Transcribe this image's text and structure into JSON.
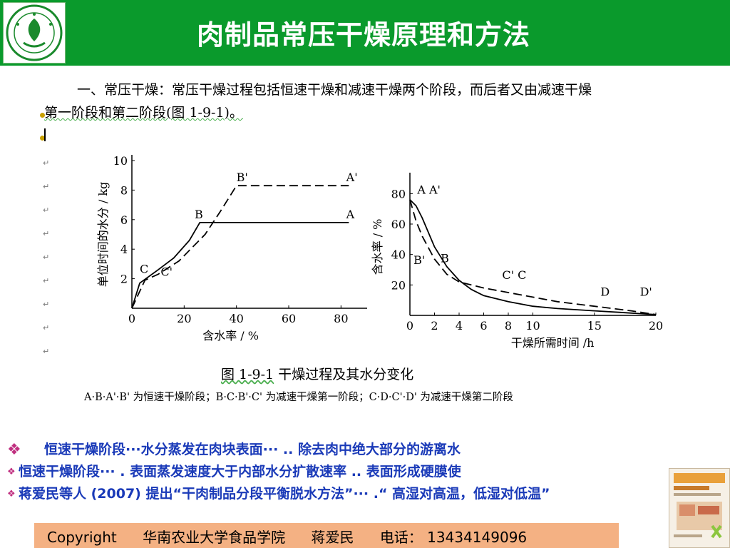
{
  "header": {
    "title": "肉制品常压干燥原理和方法"
  },
  "intro": {
    "line1": "一、常压干燥：常压干燥过程包括恒速干燥和减速干燥两个阶段，而后者又由减速干燥",
    "line2": "第一阶段和第二阶段(图 1-9-1)。"
  },
  "colors": {
    "header_bg": "#0a9a2c",
    "bullet_text": "#1a3ab8",
    "footer_bg": "#f4b183"
  },
  "chart_data": [
    {
      "type": "line",
      "xlabel": "含水率 / %",
      "ylabel": "单位时间的水分 / kg",
      "xlim": [
        0,
        90
      ],
      "ylim": [
        0,
        10
      ],
      "x_ticks": [
        0,
        20,
        40,
        60,
        80
      ],
      "y_ticks": [
        2,
        4,
        6,
        8,
        10
      ],
      "series": [
        {
          "style": "solid",
          "points": [
            [
              0,
              0
            ],
            [
              3,
              1.7
            ],
            [
              10,
              2.6
            ],
            [
              16,
              3.4
            ],
            [
              22,
              4.6
            ],
            [
              26,
              5.8
            ],
            [
              83,
              5.8
            ]
          ]
        },
        {
          "style": "dashed",
          "points": [
            [
              0,
              0
            ],
            [
              5,
              1.9
            ],
            [
              10,
              2.3
            ],
            [
              18,
              3.2
            ],
            [
              28,
              5.0
            ],
            [
              34,
              6.6
            ],
            [
              40,
              8.3
            ],
            [
              83,
              8.3
            ]
          ]
        }
      ],
      "annotations": [
        {
          "text": "B'",
          "x": 40,
          "y": 8.3
        },
        {
          "text": "A'",
          "x": 82,
          "y": 8.3
        },
        {
          "text": "B",
          "x": 24,
          "y": 5.8
        },
        {
          "text": "A",
          "x": 82,
          "y": 5.8
        },
        {
          "text": "C",
          "x": 3,
          "y": 2.1
        },
        {
          "text": "C'",
          "x": 11,
          "y": 1.9
        }
      ]
    },
    {
      "type": "line",
      "xlabel": "干燥所需时间 /h",
      "ylabel": "含水率 / %",
      "xlim": [
        0,
        20
      ],
      "ylim": [
        0,
        90
      ],
      "x_ticks": [
        0,
        2,
        4,
        6,
        8,
        10,
        15,
        20
      ],
      "y_ticks": [
        20,
        40,
        60,
        80
      ],
      "series": [
        {
          "style": "solid",
          "points": [
            [
              0,
              76
            ],
            [
              0.5,
              72
            ],
            [
              1,
              64
            ],
            [
              2,
              45
            ],
            [
              3,
              32
            ],
            [
              4,
              23
            ],
            [
              5,
              17
            ],
            [
              6,
              13
            ],
            [
              8,
              9
            ],
            [
              10,
              6
            ],
            [
              12,
              4.5
            ],
            [
              15,
              3
            ],
            [
              17,
              2
            ],
            [
              20,
              0.5
            ]
          ]
        },
        {
          "style": "dashed",
          "points": [
            [
              0,
              76
            ],
            [
              0.5,
              62
            ],
            [
              1,
              52
            ],
            [
              2,
              37
            ],
            [
              3,
              27
            ],
            [
              4,
              22
            ],
            [
              6,
              18
            ],
            [
              8,
              15
            ],
            [
              10,
              12
            ],
            [
              12,
              9
            ],
            [
              15,
              6
            ],
            [
              18,
              3
            ],
            [
              20,
              0.5
            ]
          ]
        }
      ],
      "annotations": [
        {
          "text": "A A'",
          "x": 0.6,
          "y": 77
        },
        {
          "text": "B'",
          "x": 0.3,
          "y": 31
        },
        {
          "text": "B",
          "x": 2.5,
          "y": 32
        },
        {
          "text": "C' C",
          "x": 7.5,
          "y": 21
        },
        {
          "text": "D",
          "x": 15.5,
          "y": 10
        },
        {
          "text": "D'",
          "x": 18.7,
          "y": 10
        }
      ]
    }
  ],
  "figure": {
    "caption_num": "图 1-9-1",
    "caption_text": " 干燥过程及其水分变化",
    "legend_line": "A·B·A'·B' 为恒速干燥阶段；B·C·B'·C' 为减速干燥第一阶段；C·D·C'·D' 为减速干燥第二阶段"
  },
  "bullets": [
    {
      "icon": "❖",
      "text": "恒速干燥阶段···水分蒸发在肉块表面··· .. 除去肉中绝大部分的游离水"
    },
    {
      "icon": "❖",
      "text": "恒速干燥阶段··· . 表面蒸发速度大于内部水分扩散速率 .. 表面形成硬膜使"
    },
    {
      "icon": "❖",
      "text": "蒋爱民等人 (2007) 提出“干肉制品分段平衡脱水方法”··· .“ 高湿对高温，低湿对低温”"
    }
  ],
  "footer": {
    "copyright": "Copyright",
    "institution": "华南农业大学食品学院",
    "author": "蒋爱民",
    "phone": "电话： 13434149096"
  }
}
